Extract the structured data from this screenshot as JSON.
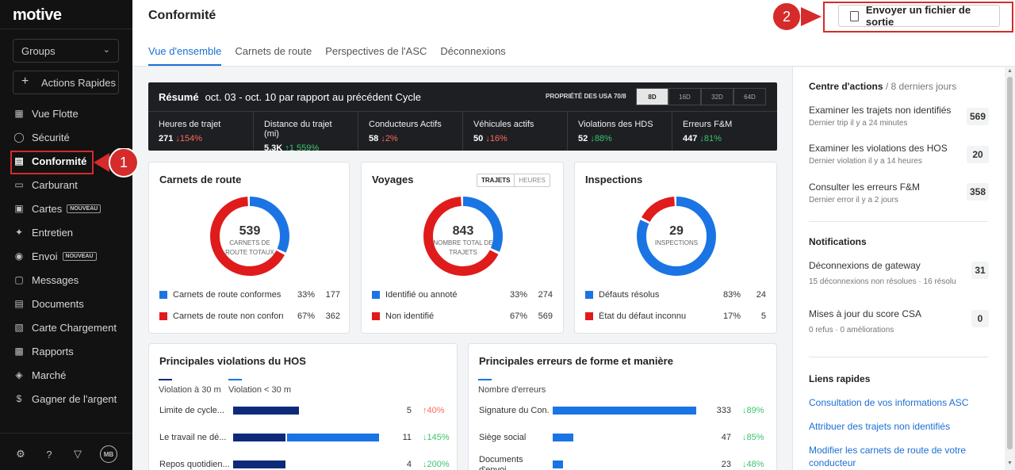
{
  "brand": {
    "logo": "motive"
  },
  "sidebar": {
    "groups_label": "Groups",
    "quick_actions_label": "Actions Rapides",
    "items": [
      {
        "label": "Vue Flotte",
        "icon": "map-icon"
      },
      {
        "label": "Sécurité",
        "icon": "shield-icon"
      },
      {
        "label": "Conformité",
        "icon": "document-icon",
        "active": true
      },
      {
        "label": "Carburant",
        "icon": "fuel-icon"
      },
      {
        "label": "Cartes",
        "icon": "card-icon",
        "badge": "NOUVEAU"
      },
      {
        "label": "Entretien",
        "icon": "wrench-icon"
      },
      {
        "label": "Envoi",
        "icon": "location-icon",
        "badge": "NOUVEAU"
      },
      {
        "label": "Messages",
        "icon": "messages-icon"
      },
      {
        "label": "Documents",
        "icon": "documents-icon"
      },
      {
        "label": "Carte Chargement",
        "icon": "load-icon"
      },
      {
        "label": "Rapports",
        "icon": "reports-icon"
      },
      {
        "label": "Marché",
        "icon": "market-icon"
      },
      {
        "label": "Gagner de l'argent",
        "icon": "dollar-icon"
      }
    ],
    "avatar": "MB"
  },
  "callouts": {
    "one": "1",
    "two": "2"
  },
  "header": {
    "title": "Conformité",
    "export_label": "Envoyer un fichier de sortie",
    "tabs": [
      "Vue d'ensemble",
      "Carnets de route",
      "Perspectives de l'ASC",
      "Déconnexions"
    ]
  },
  "summary": {
    "title": "Résumé",
    "range": "oct. 03 - oct. 10 par rapport au précédent Cycle",
    "property": "PROPRIÉTÉ DES USA 70/8",
    "periods": [
      "8D",
      "16D",
      "32D",
      "64D"
    ],
    "metrics": [
      {
        "label": "Heures de trajet",
        "value": "271",
        "delta": "↓154%",
        "dir": "dn"
      },
      {
        "label": "Distance du trajet (mi)",
        "value": "5,3K",
        "delta": "↑1 559%",
        "dir": "up"
      },
      {
        "label": "Conducteurs Actifs",
        "value": "58",
        "delta": "↓2%",
        "dir": "dn"
      },
      {
        "label": "Véhicules actifs",
        "value": "50",
        "delta": "↓16%",
        "dir": "dn"
      },
      {
        "label": "Violations des HDS",
        "value": "52",
        "delta": "↓88%",
        "dir": "up"
      },
      {
        "label": "Erreurs F&M",
        "value": "447",
        "delta": "↓81%",
        "dir": "up"
      }
    ]
  },
  "logs_card": {
    "title": "Carnets de route",
    "total": "539",
    "caption_1": "CARNETS DE",
    "caption_2": "ROUTE TOTAUX",
    "legend": [
      {
        "label": "Carnets de route conformes",
        "pct": "33%",
        "count": "177",
        "color": "#1b74e4"
      },
      {
        "label": "Carnets de route non conformes",
        "pct": "67%",
        "count": "362",
        "color": "#e01b1b"
      }
    ]
  },
  "trips_card": {
    "title": "Voyages",
    "toggle": [
      "TRAJETS",
      "HEURES"
    ],
    "total": "843",
    "caption_1": "NOMBRE TOTAL DE",
    "caption_2": "TRAJETS",
    "legend": [
      {
        "label": "Identifié ou annoté",
        "pct": "33%",
        "count": "274",
        "color": "#1b74e4"
      },
      {
        "label": "Non identifié",
        "pct": "67%",
        "count": "569",
        "color": "#e01b1b"
      }
    ]
  },
  "inspections_card": {
    "title": "Inspections",
    "total": "29",
    "caption_1": "INSPECTIONS",
    "legend": [
      {
        "label": "Défauts résolus",
        "pct": "83%",
        "count": "24",
        "color": "#1b74e4"
      },
      {
        "label": "État du défaut inconnu",
        "pct": "17%",
        "count": "5",
        "color": "#e01b1b"
      }
    ]
  },
  "hos_card": {
    "title": "Principales violations du HOS",
    "legend": [
      "Violation à 30 m",
      "Violation < 30 m"
    ],
    "rows": [
      {
        "label": "Limite de cycle...",
        "dark": 5,
        "light": 0,
        "count": "5",
        "delta": "↑40%",
        "dir": "dn"
      },
      {
        "label": "Le travail ne dé...",
        "dark": 4,
        "light": 7,
        "count": "11",
        "delta": "↓145%",
        "dir": "up"
      },
      {
        "label": "Repos quotidien...",
        "dark": 4,
        "light": 0,
        "count": "4",
        "delta": "↓200%",
        "dir": "up"
      }
    ]
  },
  "fm_card": {
    "title": "Principales erreurs de forme et manière",
    "legend": "Nombre d'erreurs",
    "rows": [
      {
        "label": "Signature du Con...",
        "value": 333,
        "count": "333",
        "delta": "↓89%"
      },
      {
        "label": "Siège social",
        "value": 47,
        "count": "47",
        "delta": "↓85%"
      },
      {
        "label": "Documents d'envoi",
        "value": 23,
        "count": "23",
        "delta": "↓48%"
      }
    ]
  },
  "right_panel": {
    "actions_title": "Centre d'actions",
    "actions_sub": " / 8 derniers jours",
    "actions": [
      {
        "title": "Examiner les trajets non identifiés",
        "sub": "Dernier trip il y a 24 minutes",
        "count": "569"
      },
      {
        "title": "Examiner les violations des HOS",
        "sub": "Dernier violation il y a 14 heures",
        "count": "20"
      },
      {
        "title": "Consulter les erreurs F&M",
        "sub": "Dernier error il y a 2 jours",
        "count": "358"
      }
    ],
    "notif_title": "Notifications",
    "notifications": [
      {
        "title": "Déconnexions de gateway",
        "sub": "15 déconnexions non résolues · 16 résolu",
        "count": "31"
      },
      {
        "title": "Mises à jour du score CSA",
        "sub": "0 refus · 0 améliorations",
        "count": "0"
      }
    ],
    "links_title": "Liens rapides",
    "links": [
      "Consultation de vos informations ASC",
      "Attribuer des trajets non identifiés",
      "Modifier les carnets de route de votre conducteur"
    ]
  }
}
